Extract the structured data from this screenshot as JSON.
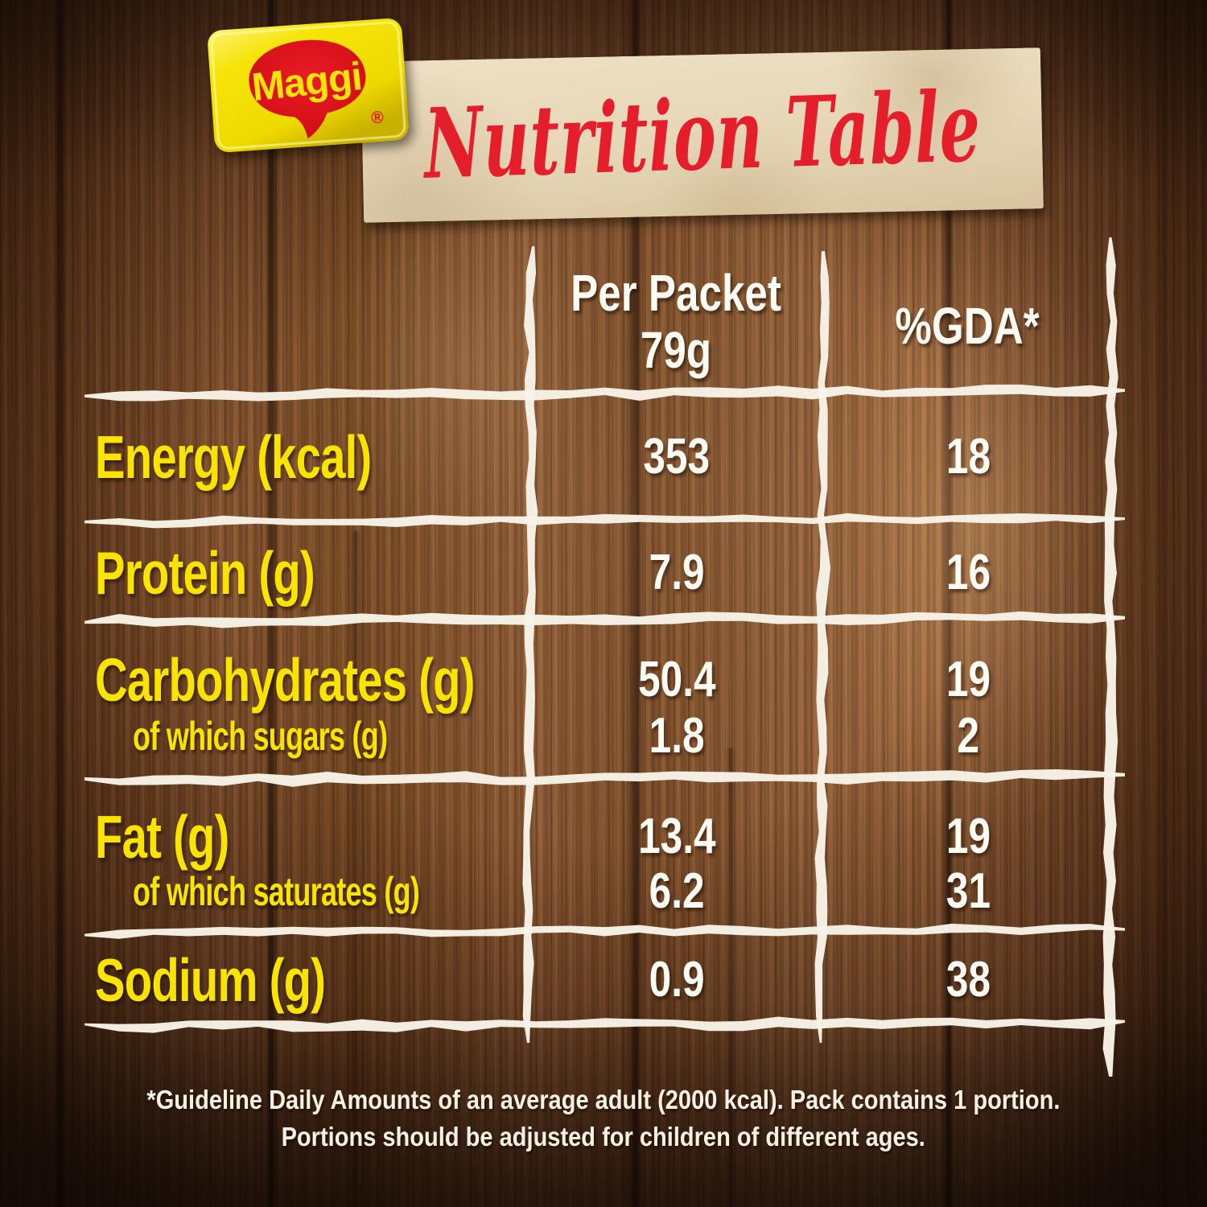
{
  "brand": {
    "logo_text": "Maggi",
    "registered_mark": "®"
  },
  "header": {
    "title": "Nutrition Table"
  },
  "table": {
    "header": {
      "col2_line1": "Per Packet",
      "col2_line2": "79g",
      "col3": "%GDA*"
    },
    "rows": [
      {
        "label": "Energy (kcal)",
        "value": "353",
        "gda": "18"
      },
      {
        "label": "Protein (g)",
        "value": "7.9",
        "gda": "16"
      },
      {
        "label": "Carbohydrates (g)",
        "value": "50.4",
        "gda": "19"
      },
      {
        "label": "of which sugars (g)",
        "value": "1.8",
        "gda": "2"
      },
      {
        "label": "Fat (g)",
        "value": "13.4",
        "gda": "19"
      },
      {
        "label": "of which saturates (g)",
        "value": "6.2",
        "gda": "31"
      },
      {
        "label": "Sodium (g)",
        "value": "0.9",
        "gda": "38"
      }
    ]
  },
  "footnote": {
    "line1": "*Guideline Daily Amounts of an average adult (2000 kcal). Pack contains 1 portion.",
    "line2": "Portions should be adjusted for children of different ages."
  },
  "chart_data": {
    "type": "table",
    "title": "Nutrition Table",
    "columns": [
      "",
      "Per Packet 79g",
      "%GDA*"
    ],
    "rows": [
      [
        "Energy (kcal)",
        353,
        18
      ],
      [
        "Protein (g)",
        7.9,
        16
      ],
      [
        "Carbohydrates (g)",
        50.4,
        19
      ],
      [
        "of which sugars (g)",
        1.8,
        2
      ],
      [
        "Fat (g)",
        13.4,
        19
      ],
      [
        "of which saturates (g)",
        6.2,
        31
      ],
      [
        "Sodium (g)",
        0.9,
        38
      ]
    ],
    "footnote": "*Guideline Daily Amounts of an average adult (2000 kcal). Pack contains 1 portion. Portions should be adjusted for children of different ages."
  },
  "colors": {
    "label_yellow": "#f9e400",
    "value_white": "#fdfbf4",
    "grid_line": "#f8f3e8",
    "title_red": "#e41e2a",
    "logo_yellow": "#f3e005",
    "logo_red": "#da0915",
    "paper_beige": "#e6d6b7",
    "wood_brown": "#7a4827"
  }
}
